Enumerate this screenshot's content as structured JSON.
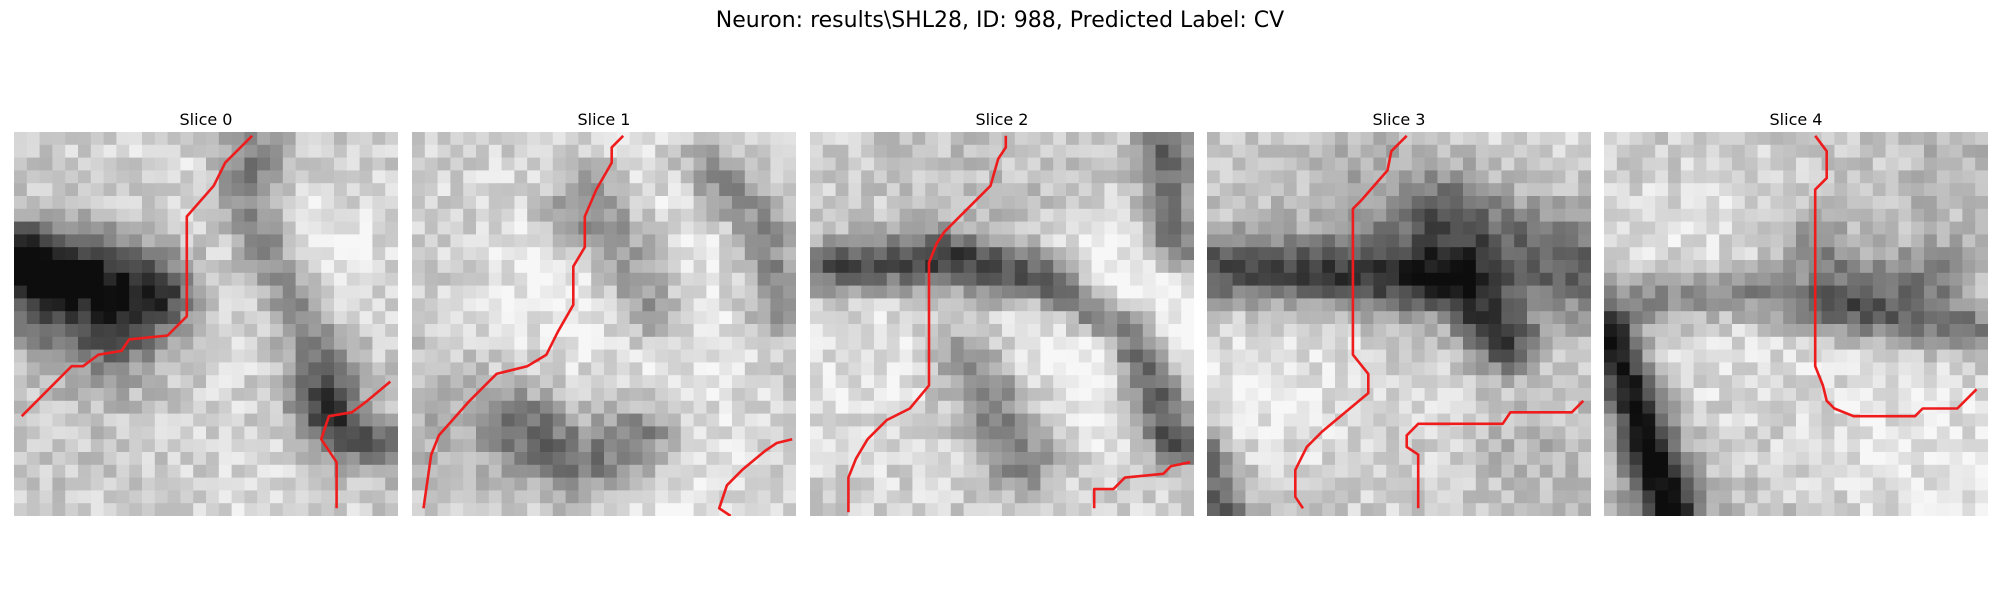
{
  "figure": {
    "title": "Neuron: results\\SHL28, ID: 988, Predicted Label: CV",
    "trace_color": "#ee1c1c"
  },
  "slices": [
    {
      "title": "Slice 0"
    },
    {
      "title": "Slice 1"
    },
    {
      "title": "Slice 2"
    },
    {
      "title": "Slice 3"
    },
    {
      "title": "Slice 4"
    }
  ]
}
